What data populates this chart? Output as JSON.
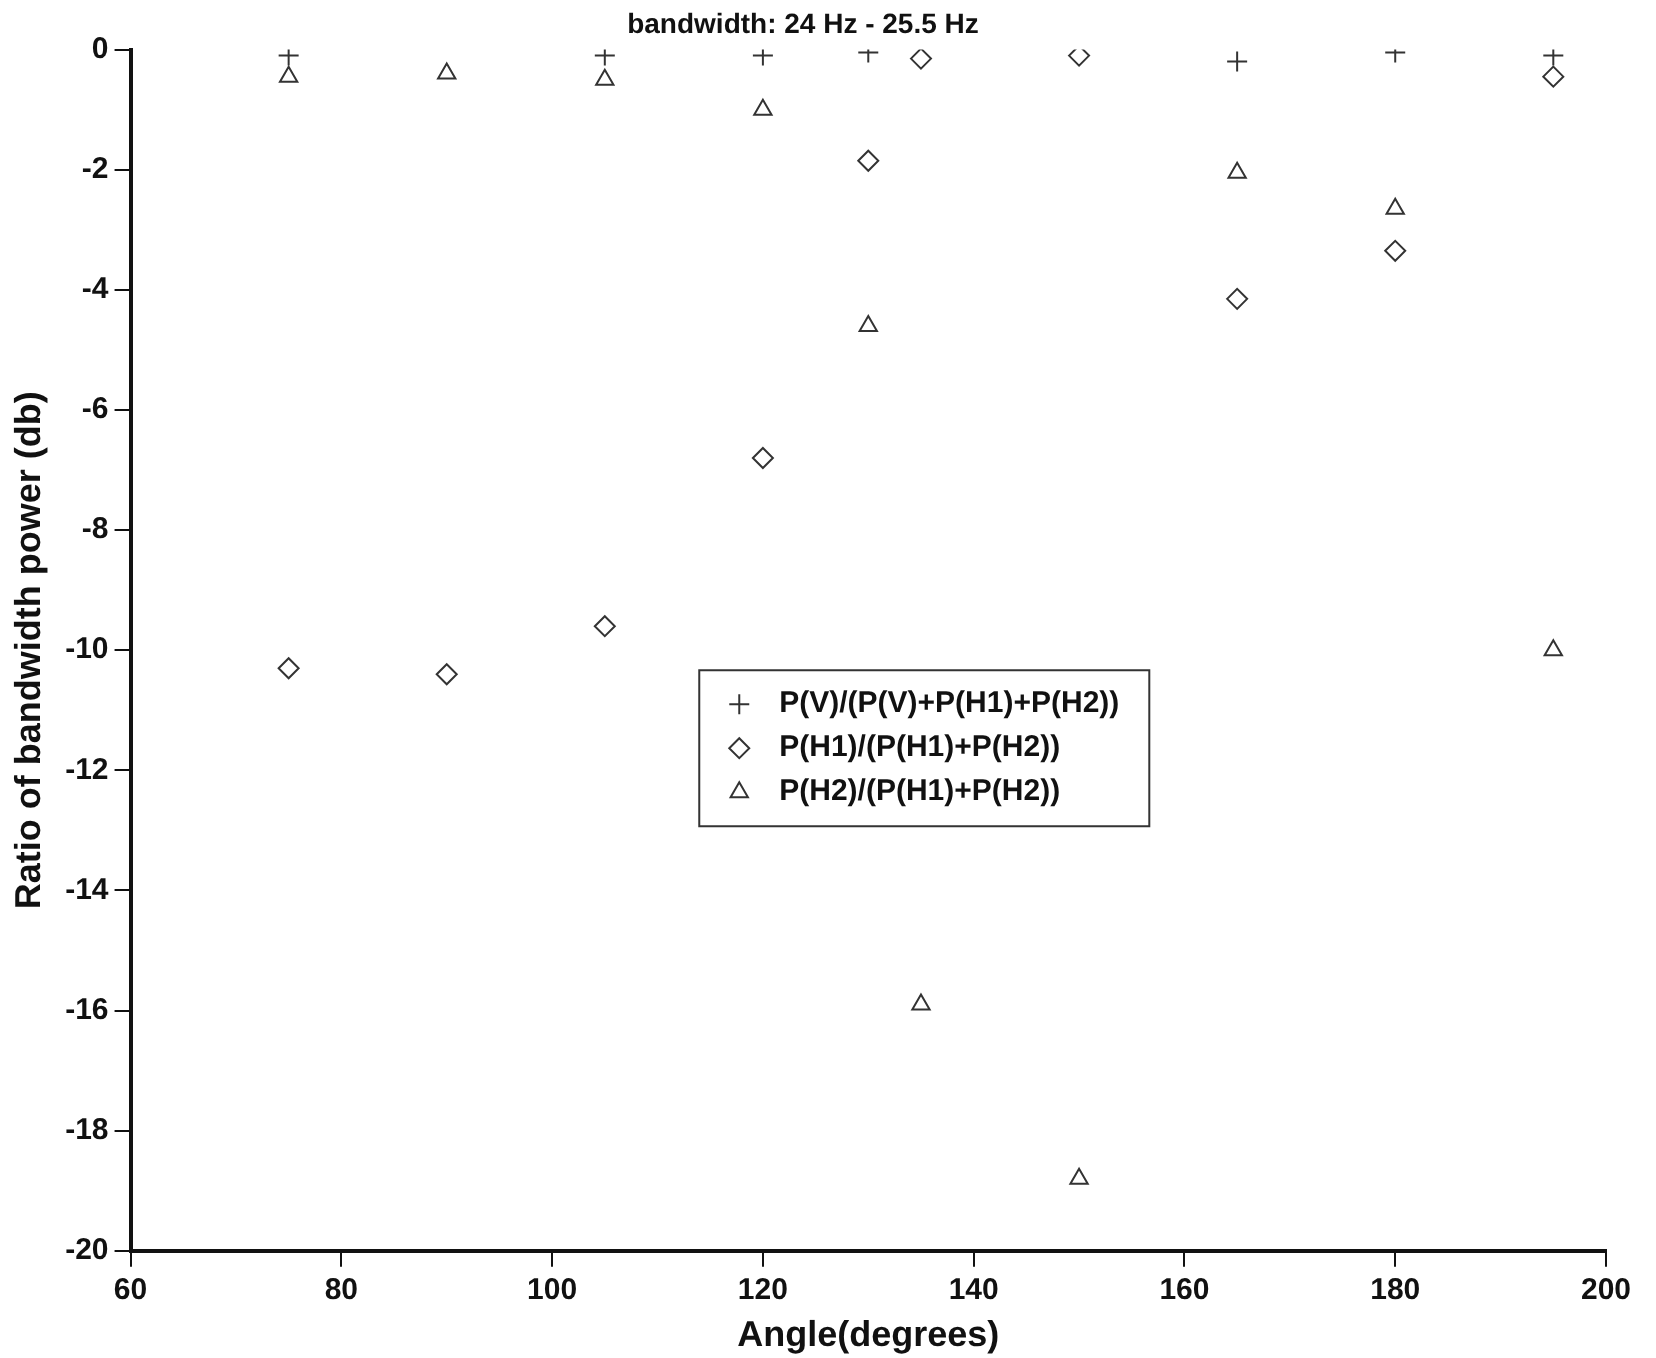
{
  "chart_data": {
    "type": "scatter",
    "title": "bandwidth: 24 Hz - 25.5 Hz",
    "xlabel": "Angle(degrees)",
    "ylabel": "Ratio of bandwidth power (db)",
    "x": [
      75,
      90,
      105,
      120,
      130,
      135,
      150,
      165,
      180,
      195
    ],
    "series": [
      {
        "name": "P(V)/(P(V)+P(H1)+P(H2))",
        "color": "#333333",
        "marker": "cross",
        "values": [
          -0.1,
          null,
          -0.1,
          -0.1,
          -0.05,
          null,
          null,
          -0.2,
          -0.05,
          -0.1
        ]
      },
      {
        "name": "P(H1)/(P(H1)+P(H2))",
        "color": "#333333",
        "marker": "diamond",
        "values": [
          -10.3,
          -10.4,
          -9.6,
          -6.8,
          -1.85,
          -0.15,
          -0.1,
          -4.15,
          -3.35,
          -0.45
        ]
      },
      {
        "name": "P(H2)/(P(H1)+P(H2))",
        "color": "#333333",
        "marker": "triangle",
        "values": [
          -0.45,
          -0.4,
          -0.5,
          -1.0,
          -4.6,
          -15.9,
          -18.8,
          -2.05,
          -2.65,
          -10.0
        ]
      }
    ],
    "xlim": [
      60,
      200
    ],
    "xticks": [
      60,
      80,
      100,
      120,
      140,
      160,
      180,
      200
    ],
    "ylim": [
      -20,
      0
    ],
    "yticks": [
      -20,
      -18,
      -16,
      -14,
      -12,
      -10,
      -8,
      -6,
      -4,
      -2,
      0
    ],
    "grid": false,
    "legend": "center"
  }
}
